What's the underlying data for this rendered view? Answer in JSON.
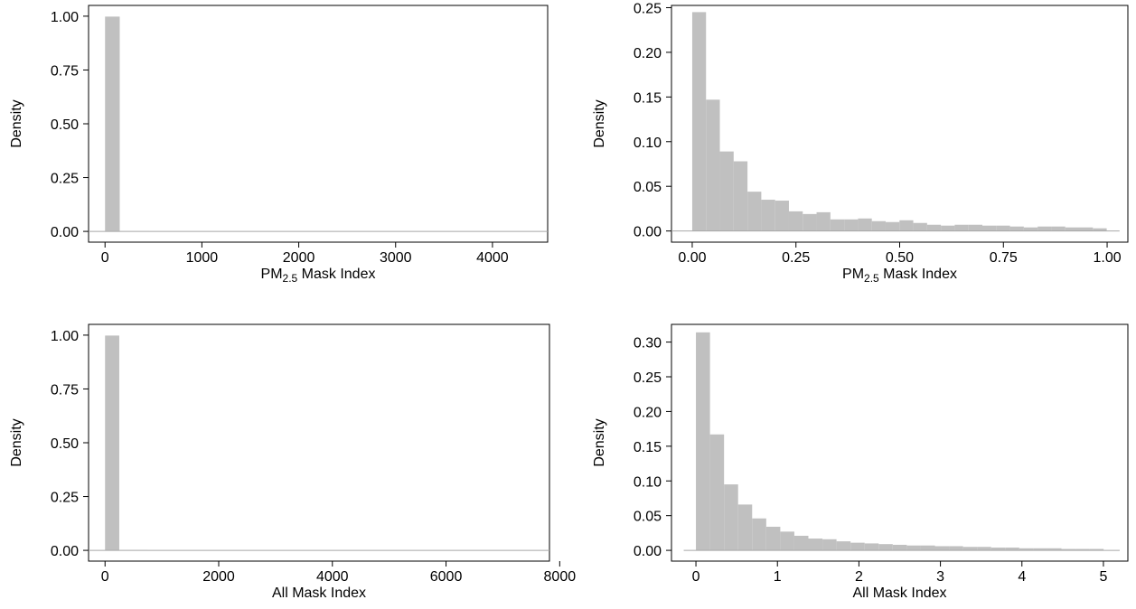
{
  "chart_data": [
    {
      "type": "histogram",
      "panel": "top-left",
      "ylabel": "Density",
      "xlabel": {
        "pre": "PM",
        "sub": "2.5",
        "post": " Mask Index"
      },
      "xlim": [
        -170,
        4570
      ],
      "ylim": [
        -0.05,
        1.05
      ],
      "xticks": [
        0,
        1000,
        2000,
        3000,
        4000
      ],
      "xtick_labels": [
        "0",
        "1000",
        "2000",
        "3000",
        "4000"
      ],
      "yticks": [
        0,
        0.25,
        0.5,
        0.75,
        1.0
      ],
      "ytick_labels": [
        "0.00",
        "0.25",
        "0.50",
        "0.75",
        "1.00"
      ],
      "baseline": [
        -170,
        4570
      ],
      "bin_start": 0,
      "bin_width": 152,
      "values": [
        0.998,
        0.001,
        0.001
      ],
      "color": "#c0c0c0"
    },
    {
      "type": "histogram",
      "panel": "top-right",
      "ylabel": "Density",
      "xlabel": {
        "pre": "PM",
        "sub": "2.5",
        "post": " Mask Index"
      },
      "xlim": [
        -0.05,
        1.05
      ],
      "ylim": [
        -0.0125,
        0.2525
      ],
      "xticks": [
        0,
        0.25,
        0.5,
        0.75,
        1.0
      ],
      "xtick_labels": [
        "0.00",
        "0.25",
        "0.50",
        "0.75",
        "1.00"
      ],
      "yticks": [
        0,
        0.05,
        0.1,
        0.15,
        0.2,
        0.25
      ],
      "ytick_labels": [
        "0.00",
        "0.05",
        "0.10",
        "0.15",
        "0.20",
        "0.25"
      ],
      "baseline": [
        -0.05,
        1.03
      ],
      "bin_start": 0,
      "bin_width": 0.0333,
      "values": [
        0.245,
        0.147,
        0.089,
        0.078,
        0.044,
        0.035,
        0.034,
        0.022,
        0.019,
        0.021,
        0.013,
        0.013,
        0.014,
        0.011,
        0.01,
        0.012,
        0.009,
        0.007,
        0.006,
        0.007,
        0.007,
        0.006,
        0.006,
        0.005,
        0.004,
        0.005,
        0.005,
        0.004,
        0.004,
        0.003
      ],
      "color": "#c0c0c0"
    },
    {
      "type": "histogram",
      "panel": "bottom-left",
      "ylabel": "Density",
      "xlabel": {
        "pre": "All Mask Index",
        "sub": "",
        "post": ""
      },
      "xlim": [
        -290,
        7820
      ],
      "ylim": [
        -0.05,
        1.05
      ],
      "xticks": [
        0,
        2000,
        4000,
        6000,
        8000
      ],
      "xtick_labels": [
        "0",
        "2000",
        "4000",
        "6000",
        "8000"
      ],
      "yticks": [
        0,
        0.25,
        0.5,
        0.75,
        1.0
      ],
      "ytick_labels": [
        "0.00",
        "0.25",
        "0.50",
        "0.75",
        "1.00"
      ],
      "baseline": [
        -290,
        7820
      ],
      "bin_start": 0,
      "bin_width": 250,
      "values": [
        0.998,
        0.001,
        0.001
      ],
      "color": "#c0c0c0"
    },
    {
      "type": "histogram",
      "panel": "bottom-right",
      "ylabel": "Density",
      "xlabel": {
        "pre": "All Mask Index",
        "sub": "",
        "post": ""
      },
      "xlim": [
        -0.3,
        5.3
      ],
      "ylim": [
        -0.0155,
        0.3255
      ],
      "xticks": [
        0,
        1,
        2,
        3,
        4,
        5
      ],
      "xtick_labels": [
        "0",
        "1",
        "2",
        "3",
        "4",
        "5"
      ],
      "yticks": [
        0,
        0.05,
        0.1,
        0.15,
        0.2,
        0.25,
        0.3
      ],
      "ytick_labels": [
        "0.00",
        "0.05",
        "0.10",
        "0.15",
        "0.20",
        "0.25",
        "0.30"
      ],
      "baseline": [
        -0.15,
        5.2
      ],
      "bin_start": 0,
      "bin_width": 0.1725,
      "values": [
        0.314,
        0.167,
        0.095,
        0.066,
        0.046,
        0.034,
        0.027,
        0.021,
        0.017,
        0.016,
        0.013,
        0.011,
        0.01,
        0.009,
        0.008,
        0.007,
        0.007,
        0.006,
        0.006,
        0.005,
        0.005,
        0.004,
        0.004,
        0.003,
        0.003,
        0.003,
        0.002,
        0.002,
        0.002
      ],
      "color": "#c0c0c0"
    }
  ]
}
